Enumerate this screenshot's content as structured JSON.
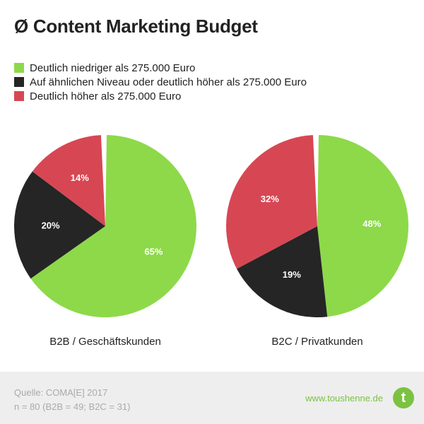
{
  "title": "Ø Content Marketing Budget",
  "legend": [
    {
      "label": "Deutlich niedriger als 275.000 Euro",
      "color": "#8dd94a"
    },
    {
      "label": "Auf ähnlichen Niveau oder deutlich höher als 275.000 Euro",
      "color": "#252525"
    },
    {
      "label": "Deutlich höher als 275.000 Euro",
      "color": "#d74753"
    }
  ],
  "chart_data": [
    {
      "type": "pie",
      "title": "B2B / Geschäftskunden",
      "slices": [
        {
          "label": "Deutlich niedriger als 275.000 Euro",
          "value": 65,
          "display": "65%",
          "color": "#8dd94a"
        },
        {
          "label": "Auf ähnlichen Niveau oder deutlich höher als 275.000 Euro",
          "value": 20,
          "display": "20%",
          "color": "#252525"
        },
        {
          "label": "Deutlich höher als 275.000 Euro",
          "value": 14,
          "display": "14%",
          "color": "#d74753"
        }
      ]
    },
    {
      "type": "pie",
      "title": "B2C / Privatkunden",
      "slices": [
        {
          "label": "Deutlich niedriger als 275.000 Euro",
          "value": 48,
          "display": "48%",
          "color": "#8dd94a"
        },
        {
          "label": "Auf ähnlichen Niveau oder deutlich höher als 275.000 Euro",
          "value": 19,
          "display": "19%",
          "color": "#252525"
        },
        {
          "label": "Deutlich höher als 275.000 Euro",
          "value": 32,
          "display": "32%",
          "color": "#d74753"
        }
      ]
    }
  ],
  "footer": {
    "source_line1": "Quelle: COMA[E] 2017",
    "source_line2": "n = 80 (B2B = 49; B2C = 31)",
    "website": "www.toushenne.de",
    "logo_letter": "t"
  }
}
